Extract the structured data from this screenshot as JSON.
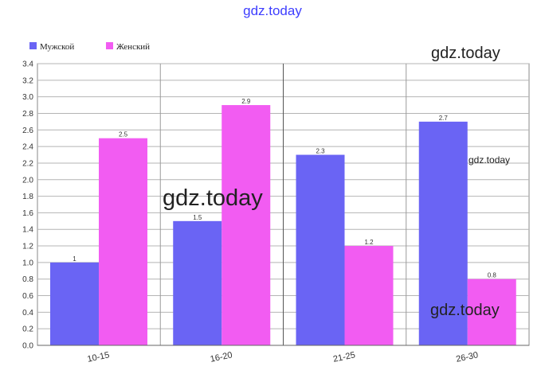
{
  "watermarks": {
    "top": "gdz.today",
    "top_right": "gdz.today",
    "mid_right": "gdz.today",
    "center": "gdz.today",
    "bottom_right": "gdz.today"
  },
  "chart_data": {
    "type": "bar",
    "categories": [
      "10-15",
      "16-20",
      "21-25",
      "26-30"
    ],
    "series": [
      {
        "name": "Мужской",
        "values": [
          1,
          1.5,
          2.3,
          2.7
        ],
        "color": "#6a64f4"
      },
      {
        "name": "Женский",
        "values": [
          2.5,
          2.9,
          1.2,
          0.8
        ],
        "color": "#f25cf2"
      }
    ],
    "data_labels": [
      [
        "1",
        "1.5",
        "2.3",
        "2.7"
      ],
      [
        "2.5",
        "2.9",
        "1.2",
        "0.8"
      ]
    ],
    "yticks": [
      "0.0",
      "0.2",
      "0.4",
      "0.6",
      "0.8",
      "1.0",
      "1.2",
      "1.4",
      "1.6",
      "1.8",
      "2.0",
      "2.2",
      "2.4",
      "2.6",
      "2.8",
      "3.0",
      "3.2",
      "3.4"
    ],
    "ylim": [
      0,
      3.4
    ],
    "grid": true,
    "legend_position": "top-left",
    "title": "",
    "xlabel": "",
    "ylabel": ""
  }
}
